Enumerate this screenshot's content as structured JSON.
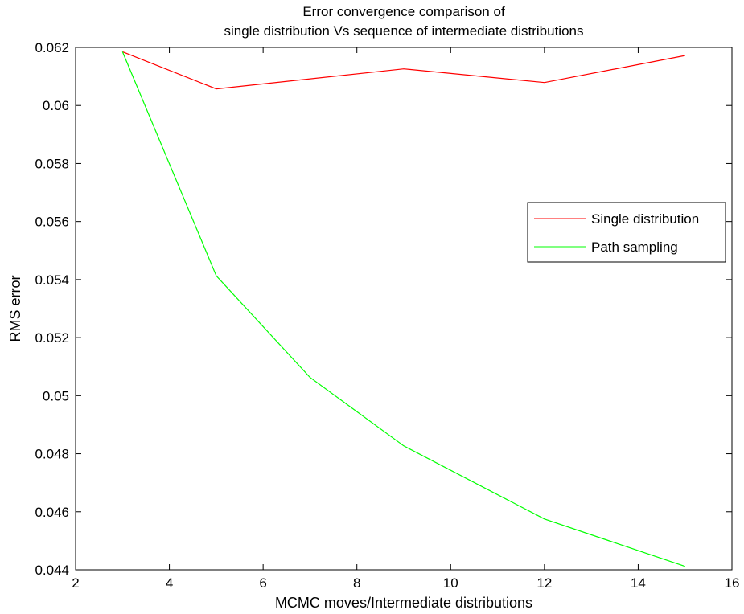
{
  "chart_data": {
    "type": "line",
    "title_lines": [
      "Error convergence comparison of",
      "single distribution Vs sequence of intermediate distributions"
    ],
    "xlabel": "MCMC moves/Intermediate distributions",
    "ylabel": "RMS error",
    "xlim": [
      2,
      16
    ],
    "ylim": [
      0.044,
      0.062
    ],
    "xticks": [
      2,
      4,
      6,
      8,
      10,
      12,
      14,
      16
    ],
    "yticks": [
      0.044,
      0.046,
      0.048,
      0.05,
      0.052,
      0.054,
      0.056,
      0.058,
      0.06,
      0.062
    ],
    "xtick_labels": [
      "2",
      "4",
      "6",
      "8",
      "10",
      "12",
      "14",
      "16"
    ],
    "ytick_labels": [
      "0.044",
      "0.046",
      "0.048",
      "0.05",
      "0.052",
      "0.054",
      "0.056",
      "0.058",
      "0.06",
      "0.062"
    ],
    "grid": false,
    "legend_position": "right",
    "series": [
      {
        "name": "Single distribution",
        "color": "#ff0000",
        "x": [
          3,
          5,
          9,
          12,
          15
        ],
        "y": [
          0.06185,
          0.06057,
          0.06126,
          0.06079,
          0.06172
        ]
      },
      {
        "name": "Path sampling",
        "color": "#00ff00",
        "x": [
          3,
          5,
          7,
          9,
          12,
          15
        ],
        "y": [
          0.06185,
          0.05413,
          0.05063,
          0.04827,
          0.04575,
          0.04412
        ]
      }
    ]
  }
}
